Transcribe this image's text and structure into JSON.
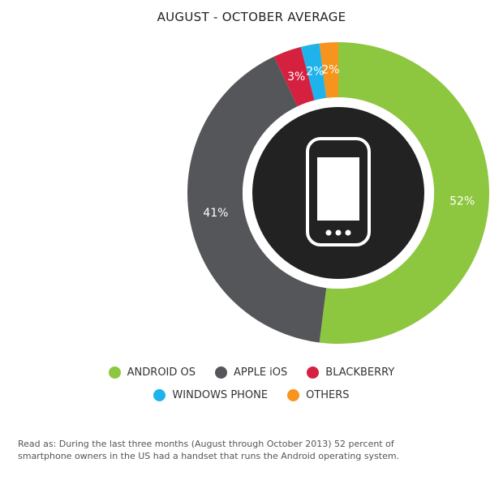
{
  "chart_data": {
    "type": "pie",
    "title": "AUGUST - OCTOBER AVERAGE",
    "slices": [
      {
        "label": "ANDROID OS",
        "value": 52,
        "value_label": "52%",
        "color": "#8dc63f"
      },
      {
        "label": "APPLE iOS",
        "value": 41,
        "value_label": "41%",
        "color": "#55565a"
      },
      {
        "label": "BLACKBERRY",
        "value": 3,
        "value_label": "3%",
        "color": "#d6203f"
      },
      {
        "label": "WINDOWS PHONE",
        "value": 2,
        "value_label": "2%",
        "color": "#1fb3ec"
      },
      {
        "label": "OTHERS",
        "value": 2,
        "value_label": "2%",
        "color": "#f7941d"
      }
    ],
    "center_icon": "smartphone-icon",
    "legend_position": "bottom"
  },
  "note": {
    "line1": "Read as: During the last three months (August through October 2013) 52 percent of",
    "line2": "smartphone owners in the US had a handset that runs the Android operating system."
  }
}
